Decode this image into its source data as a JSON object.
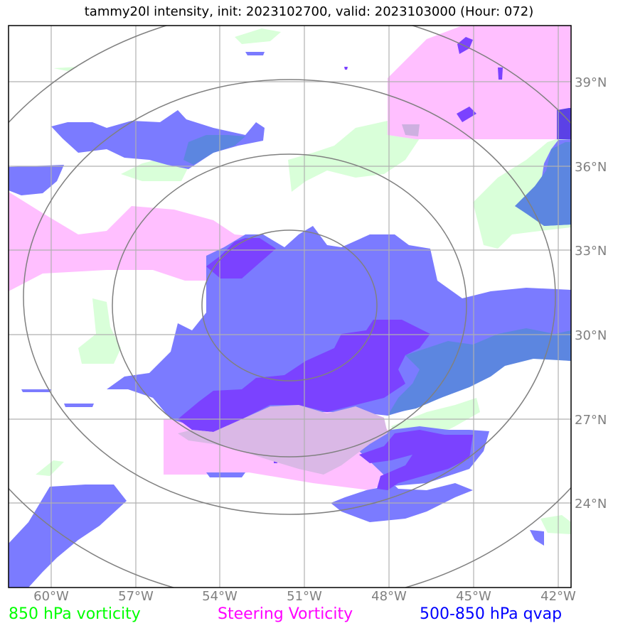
{
  "title": "tammy20l intensity, init: 2023102700, valid: 2023103000 (Hour: 072)",
  "map": {
    "lon_ticks": [
      "60°W",
      "57°W",
      "54°W",
      "51°W",
      "48°W",
      "45°W",
      "42°W"
    ],
    "lat_ticks": [
      "39°N",
      "36°N",
      "33°N",
      "30°N",
      "27°N",
      "24°N"
    ],
    "center": {
      "lon": -51.0,
      "lat": 31.0
    },
    "range_rings_count": 4
  },
  "legend": [
    {
      "label": "850 hPa vorticity",
      "color": "#00ff00"
    },
    {
      "label": "Steering Vorticity",
      "color": "#ff00ff"
    },
    {
      "label": "500-850 hPa qvap",
      "color": "#0000ff"
    }
  ],
  "colors": {
    "vort850_fill": "#d9ffd9",
    "steering_fill": "#ffbfff",
    "qvap_fill": "#7b7bff",
    "qvap_high_fill": "#7b42ff",
    "overlap_fill": "#5c86e0",
    "grid": "#b0b0b0",
    "rings": "#808080"
  }
}
